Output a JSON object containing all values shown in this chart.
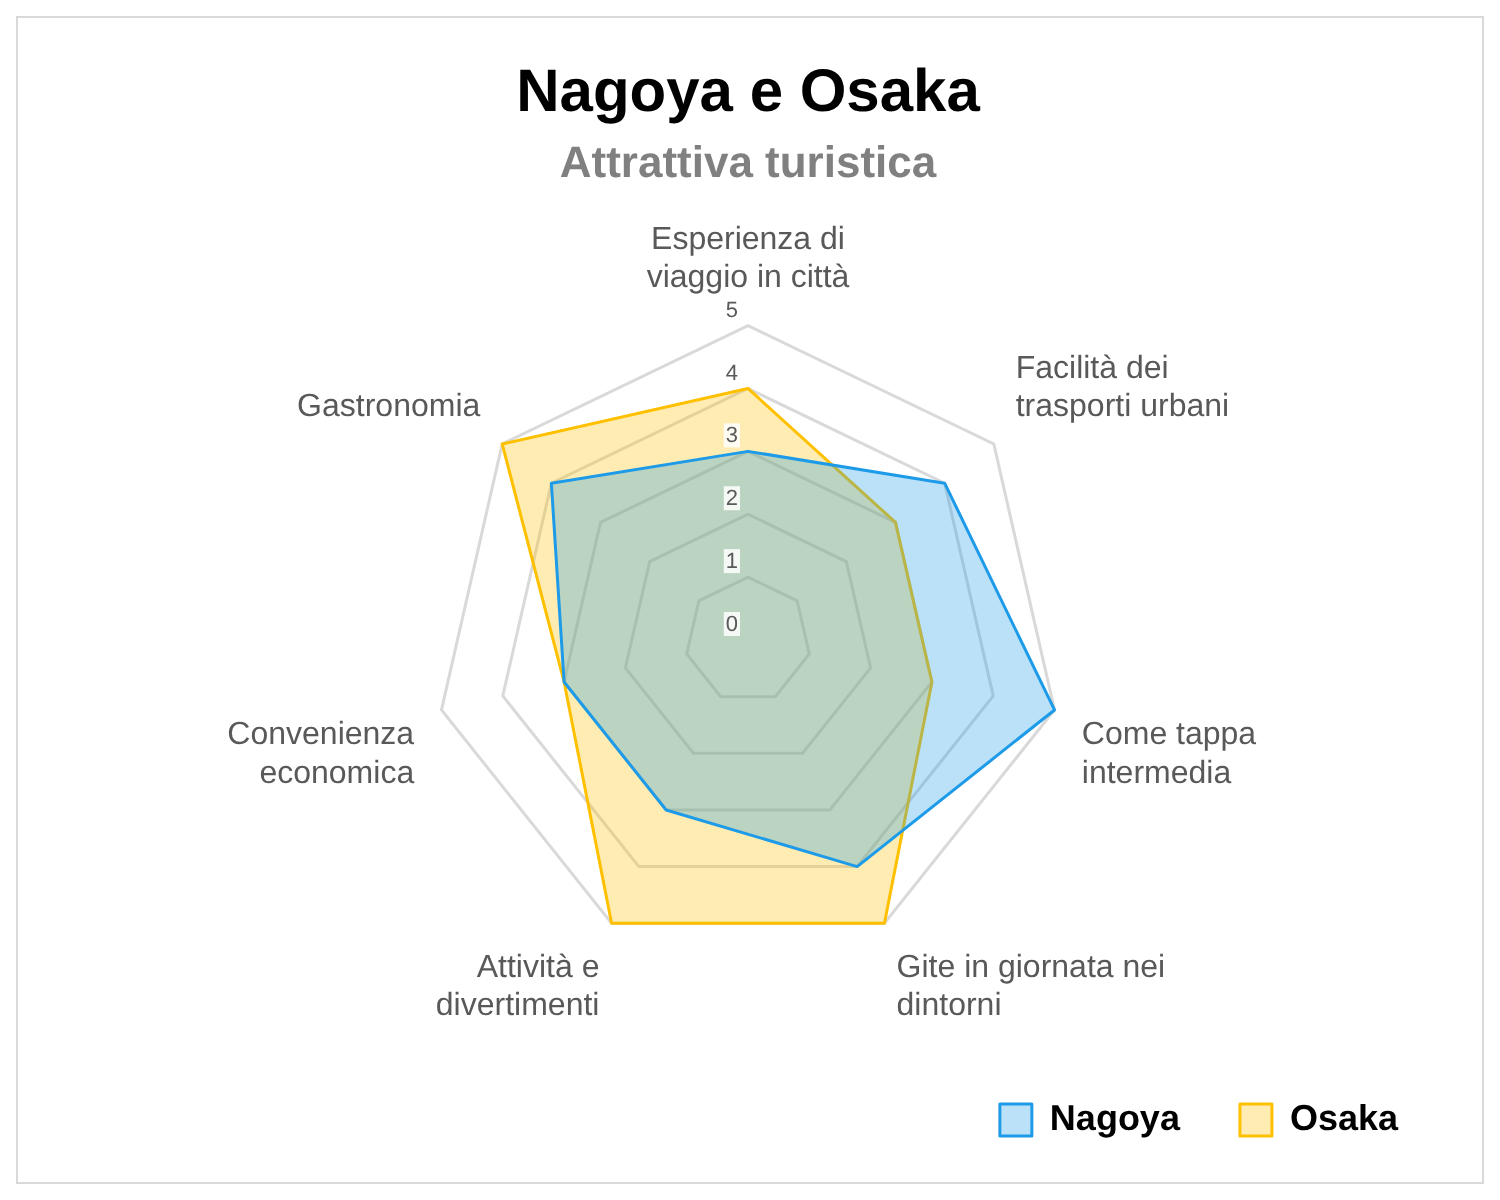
{
  "chart_data": {
    "type": "radar",
    "title": "Nagoya e Osaka",
    "subtitle": "Attrattiva turistica",
    "categories": [
      "Esperienza di viaggio in città",
      "Facilità dei trasporti urbani",
      "Come tappa intermedia",
      "Gite in giornata nei dintorni",
      "Attività e divertimenti",
      "Convenienza economica",
      "Gastronomia"
    ],
    "series": [
      {
        "name": "Nagoya",
        "color": "#1e9be8",
        "values": [
          3,
          4,
          5,
          4,
          3,
          3,
          4
        ]
      },
      {
        "name": "Osaka",
        "color": "#ffc000",
        "values": [
          4,
          3,
          3,
          5,
          5,
          3,
          5
        ]
      }
    ],
    "ylim": [
      0,
      5
    ],
    "yticks": [
      0,
      1,
      2,
      3,
      4,
      5
    ],
    "grid": true,
    "legend": "bottom right"
  }
}
